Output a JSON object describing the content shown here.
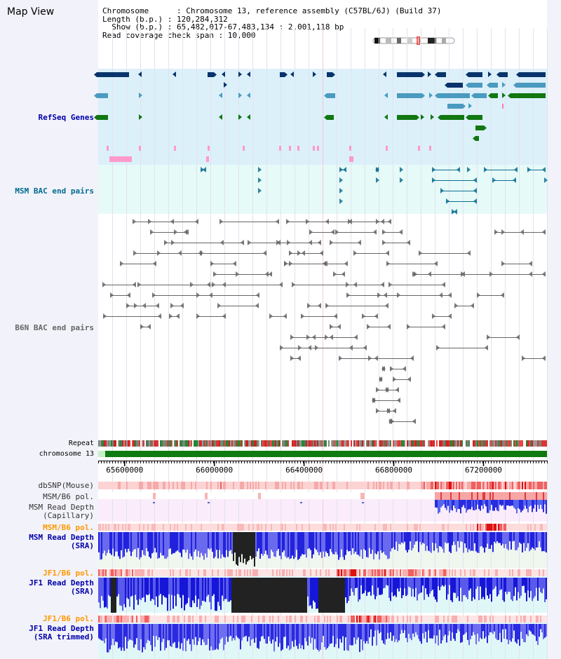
{
  "header": {
    "title": "Map View",
    "info_lines": [
      "Chromosome      : Chromosome 13, reference assembly (C57BL/6J) (Build 37)",
      "Length (b.p.) : 120,284,312",
      "  Show (b.p.) : 65,482,017-67,483,134 : 2,001,118 bp",
      "Read coverage check span : 10,000"
    ]
  },
  "tracks": {
    "refseq": {
      "label": "RefSeq Genes"
    },
    "msm_bac": {
      "label": "MSM BAC end pairs"
    },
    "b6n_bac": {
      "label": "B6N BAC end pairs"
    },
    "repeat": {
      "label": "Repeat"
    },
    "chromosome": {
      "label": "chromosome 13"
    },
    "dbsnp": {
      "label": "dbSNP(Mouse)"
    },
    "msm_b6_pol_1": {
      "label": "MSM/B6 pol."
    },
    "msm_depth_cap": {
      "label_1": "MSM Read Depth",
      "label_2": "(Capillary)"
    },
    "msm_b6_pol_2": {
      "label": "MSM/B6 pol."
    },
    "msm_depth_sra": {
      "label_1": "MSM Read Depth",
      "label_2": "(SRA)"
    },
    "jf1_b6_pol_1": {
      "label": "JF1/B6 pol."
    },
    "jf1_depth_sra": {
      "label_1": "JF1 Read Depth",
      "label_2": "(SRA)"
    },
    "jf1_b6_pol_2": {
      "label": "JF1/B6 pol."
    },
    "jf1_depth_trim": {
      "label_1": "JF1 Read Depth",
      "label_2": "(SRA trimmed)"
    }
  },
  "axis": {
    "ticks": [
      {
        "pos": 65600000,
        "label": "65600000"
      },
      {
        "pos": 66000000,
        "label": "66000000"
      },
      {
        "pos": 66400000,
        "label": "66400000"
      },
      {
        "pos": 66800000,
        "label": "66800000"
      },
      {
        "pos": 67200000,
        "label": "67200000"
      }
    ]
  },
  "colors": {
    "refseq_dark": "#08336b",
    "refseq_mid": "#4a9bbf",
    "refseq_green": "#117711",
    "refseq_pink": "#ff99cc",
    "msm_teal": "#0e6f91",
    "b6n_grey": "#666666",
    "depth_blue": "#1111dd",
    "depth_black": "#222222"
  }
}
